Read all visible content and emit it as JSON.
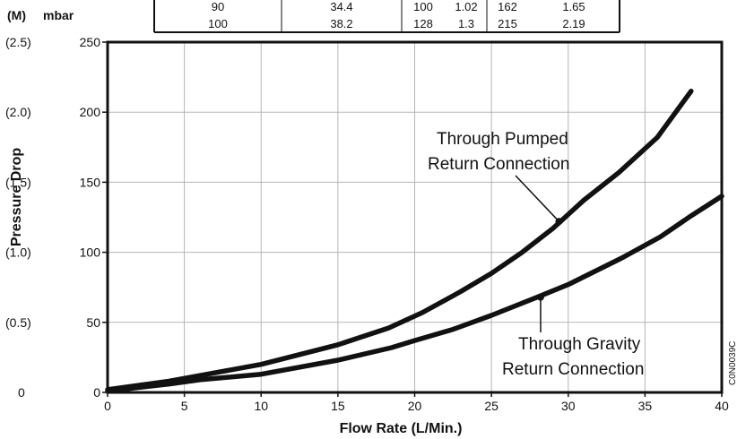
{
  "chart_data": {
    "type": "line",
    "xlabel": "Flow Rate (L/Min.)",
    "ylabel": "Pressure Drop",
    "xlim": [
      0,
      40
    ],
    "ylim": [
      0,
      250
    ],
    "x_ticks": [
      "0",
      "5",
      "10",
      "15",
      "20",
      "25",
      "30",
      "35",
      "40"
    ],
    "y_ticks_mbar": [
      "0",
      "50",
      "100",
      "150",
      "200",
      "250"
    ],
    "y_ticks_m": [
      "0",
      "(0.5)",
      "(1.0)",
      "(1.5)",
      "(2.0)",
      "(2.5)"
    ],
    "y_unit_left": "(M)",
    "y_unit_right": "mbar",
    "grid": true,
    "series": [
      {
        "name": "Through Pumped Return Connection",
        "label_lines": [
          "Through Pumped",
          "Return Connection"
        ],
        "x": [
          0,
          4,
          6,
          10,
          15,
          18.3,
          20.5,
          23,
          25,
          27,
          29,
          31,
          33.3,
          35.8,
          38
        ],
        "y": [
          2,
          8,
          12,
          20,
          34,
          46,
          57,
          72,
          85,
          100,
          117,
          137,
          157,
          182,
          215
        ]
      },
      {
        "name": "Through Gravity Return Connection",
        "label_lines": [
          "Through Gravity",
          "Return Connection"
        ],
        "x": [
          0,
          4,
          6,
          10,
          15,
          18.5,
          20,
          22.5,
          25,
          28,
          30,
          33.5,
          36,
          38,
          40
        ],
        "y": [
          1,
          6,
          9,
          13,
          23,
          32,
          37,
          45,
          55,
          68,
          77,
          96,
          111,
          126,
          140
        ]
      }
    ],
    "table_rows": [
      [
        "90",
        "34.4",
        "100",
        "1.02",
        "162",
        "1.65"
      ],
      [
        "100",
        "38.2",
        "128",
        "1.3",
        "215",
        "2.19"
      ]
    ],
    "code_label": "C0N0039C"
  }
}
